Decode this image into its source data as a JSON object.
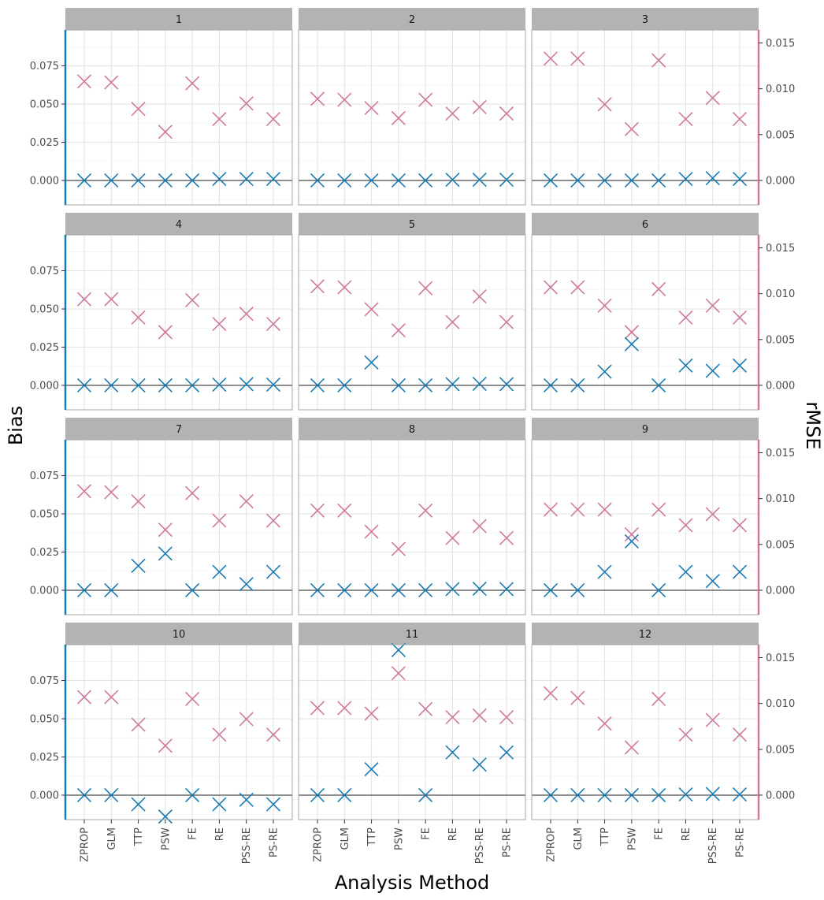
{
  "chart_data": {
    "type": "scatter",
    "facet_layout": "4 rows x 3 columns",
    "xlabel": "Analysis Method",
    "ylabel_left": "Bias",
    "ylabel_right": "rMSE",
    "categories": [
      "ZPROP",
      "GLM",
      "TTP",
      "PSW",
      "FE",
      "RE",
      "PSS-RE",
      "PS-RE"
    ],
    "bias_axis": {
      "range": [
        -0.016,
        0.0985
      ],
      "ticks": [
        0.0,
        0.025,
        0.05,
        0.075
      ],
      "tick_labels": [
        "0.000",
        "0.025",
        "0.050",
        "0.075"
      ],
      "color": "#1a7bb3"
    },
    "rmse_axis": {
      "range": [
        -0.00267,
        0.01642
      ],
      "ticks": [
        0.0,
        0.005,
        0.01,
        0.015
      ],
      "tick_labels": [
        "0.000",
        "0.005",
        "0.010",
        "0.015"
      ],
      "color": "#d1789f"
    },
    "marker": "x",
    "grid": true,
    "zero_line": true,
    "panels": [
      {
        "label": "1",
        "bias": [
          0.0,
          0.0,
          0.0,
          0.0,
          0.0,
          0.001,
          0.001,
          0.001
        ],
        "rmse": [
          0.0108,
          0.0107,
          0.0078,
          0.0053,
          0.0106,
          0.0067,
          0.0084,
          0.0067
        ]
      },
      {
        "label": "2",
        "bias": [
          0.0,
          0.0,
          0.0,
          0.0,
          0.0,
          0.0005,
          0.0005,
          0.0005
        ],
        "rmse": [
          0.0089,
          0.0088,
          0.0079,
          0.0068,
          0.0088,
          0.0073,
          0.008,
          0.0073
        ]
      },
      {
        "label": "3",
        "bias": [
          0.0,
          0.0,
          0.0,
          0.0,
          0.0,
          0.001,
          0.0015,
          0.001
        ],
        "rmse": [
          0.0133,
          0.0133,
          0.0083,
          0.0056,
          0.0131,
          0.0067,
          0.009,
          0.0067
        ]
      },
      {
        "label": "4",
        "bias": [
          0.0,
          0.0,
          0.0,
          0.0,
          0.0,
          0.0005,
          0.0008,
          0.0005
        ],
        "rmse": [
          0.0094,
          0.0094,
          0.0074,
          0.0058,
          0.0093,
          0.0067,
          0.0078,
          0.0067
        ]
      },
      {
        "label": "5",
        "bias": [
          0.0,
          0.0,
          0.015,
          0.0,
          0.0,
          0.0008,
          0.001,
          0.0008
        ],
        "rmse": [
          0.0108,
          0.0107,
          0.0083,
          0.006,
          0.0106,
          0.0069,
          0.0097,
          0.0069
        ]
      },
      {
        "label": "6",
        "bias": [
          0.0,
          0.0,
          0.009,
          0.027,
          0.0,
          0.013,
          0.0095,
          0.013
        ],
        "rmse": [
          0.0107,
          0.0107,
          0.0087,
          0.0058,
          0.0105,
          0.0074,
          0.0087,
          0.0074
        ]
      },
      {
        "label": "7",
        "bias": [
          0.0,
          0.0,
          0.016,
          0.024,
          0.0,
          0.012,
          0.004,
          0.012
        ],
        "rmse": [
          0.0108,
          0.0107,
          0.0097,
          0.0066,
          0.0106,
          0.0076,
          0.0097,
          0.0076
        ]
      },
      {
        "label": "8",
        "bias": [
          0.0,
          0.0,
          0.0,
          0.0,
          0.0,
          0.0008,
          0.001,
          0.0008
        ],
        "rmse": [
          0.0087,
          0.0087,
          0.0064,
          0.0045,
          0.0087,
          0.0057,
          0.007,
          0.0057
        ]
      },
      {
        "label": "9",
        "bias": [
          0.0,
          0.0,
          0.012,
          0.032,
          0.0,
          0.012,
          0.006,
          0.012
        ],
        "rmse": [
          0.0088,
          0.0088,
          0.0088,
          0.0061,
          0.0088,
          0.0071,
          0.0083,
          0.0071
        ]
      },
      {
        "label": "10",
        "bias": [
          0.0,
          0.0,
          -0.006,
          -0.014,
          0.0,
          -0.006,
          -0.003,
          -0.006
        ],
        "rmse": [
          0.0107,
          0.0107,
          0.0077,
          0.0054,
          0.0105,
          0.0066,
          0.0083,
          0.0066
        ]
      },
      {
        "label": "11",
        "bias": [
          0.0,
          0.0,
          0.017,
          0.095,
          0.0,
          0.028,
          0.02,
          0.028
        ],
        "rmse": [
          0.0095,
          0.0095,
          0.0089,
          0.0133,
          0.0094,
          0.0085,
          0.0087,
          0.0085
        ]
      },
      {
        "label": "12",
        "bias": [
          0.0,
          0.0,
          0.0,
          0.0,
          0.0,
          0.0005,
          0.0008,
          0.0005
        ],
        "rmse": [
          0.0111,
          0.0106,
          0.0078,
          0.0052,
          0.0105,
          0.0066,
          0.0082,
          0.0066
        ]
      }
    ]
  }
}
